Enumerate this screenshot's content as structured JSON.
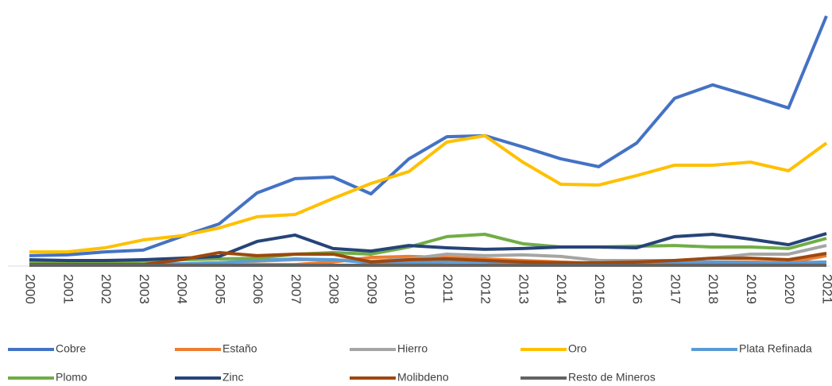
{
  "chart_data": {
    "type": "line",
    "categories": [
      "2000",
      "2001",
      "2002",
      "2003",
      "2004",
      "2005",
      "2006",
      "2007",
      "2008",
      "2009",
      "2010",
      "2011",
      "2012",
      "2013",
      "2014",
      "2015",
      "2016",
      "2017",
      "2018",
      "2019",
      "2020",
      "2021"
    ],
    "ylim": [
      0,
      100
    ],
    "legend": "bottom",
    "series": [
      {
        "name": "Cobre",
        "color": "#4472c4",
        "values": [
          4.1,
          4.4,
          5.6,
          6.3,
          11.6,
          16.6,
          28.8,
          34.4,
          35,
          28.4,
          42.2,
          50.9,
          51.3,
          46.9,
          42.2,
          39.1,
          48.4,
          66,
          71.3,
          66.9,
          62.2,
          98.4
        ]
      },
      {
        "name": "Estaño",
        "color": "#ed7d31",
        "values": [
          0.6,
          0.6,
          0.6,
          0.6,
          0.6,
          0.6,
          0.6,
          0.6,
          1.6,
          3.4,
          3.8,
          3.4,
          2.8,
          2.2,
          1.6,
          1,
          1,
          1.3,
          1.6,
          1.6,
          1.3,
          4.1
        ]
      },
      {
        "name": "Hierro",
        "color": "#a5a5a5",
        "values": [
          0.6,
          0.6,
          0.6,
          0.6,
          0.9,
          1.3,
          1.9,
          2.5,
          2.5,
          1.9,
          2.8,
          4.7,
          4.1,
          4.4,
          3.8,
          2.2,
          2.2,
          2.2,
          3.1,
          4.7,
          4.7,
          8.1
        ]
      },
      {
        "name": "Oro",
        "color": "#ffc000",
        "values": [
          5.6,
          5.6,
          7.2,
          10.3,
          11.9,
          15,
          19.4,
          20.3,
          26.6,
          32.5,
          37.2,
          48.8,
          51.3,
          40.9,
          32.2,
          31.9,
          35.6,
          39.7,
          39.7,
          40.9,
          37.5,
          48.4
        ]
      },
      {
        "name": "Plata Refinada",
        "color": "#5b9bd5",
        "values": [
          0.6,
          0.6,
          0.6,
          0.6,
          0.9,
          1.3,
          2.2,
          2.8,
          2.5,
          1.3,
          1.3,
          1.6,
          1.6,
          1.3,
          1.3,
          0.9,
          0.9,
          1.3,
          1.6,
          1.3,
          1.3,
          1.6
        ]
      },
      {
        "name": "Plomo",
        "color": "#70ad47",
        "values": [
          1.3,
          1.3,
          1.6,
          1.9,
          2.5,
          2.8,
          3.1,
          4.7,
          5.3,
          4.7,
          7.5,
          11.6,
          12.5,
          8.8,
          7.5,
          7.5,
          7.8,
          8.1,
          7.5,
          7.5,
          6.9,
          10.9
        ]
      },
      {
        "name": "Zinc",
        "color": "#264478",
        "values": [
          2.5,
          2.2,
          2.2,
          2.5,
          3.1,
          3.8,
          9.7,
          12.2,
          6.9,
          5.9,
          8.1,
          7.2,
          6.6,
          6.9,
          7.5,
          7.5,
          7.2,
          11.6,
          12.5,
          10.6,
          8.4,
          12.8
        ]
      },
      {
        "name": "Molibdeno",
        "color": "#9e480e",
        "values": [
          0.6,
          0.6,
          0.6,
          0.6,
          2.5,
          5.3,
          4.1,
          4.7,
          4.7,
          1.6,
          2.5,
          2.8,
          2.2,
          1.6,
          1.3,
          1.3,
          1.6,
          2.2,
          3.1,
          3.1,
          2.5,
          5
        ]
      },
      {
        "name": "Resto de Mineros",
        "color": "#636363",
        "values": [
          0.3,
          0.3,
          0.3,
          0.3,
          0.3,
          0.3,
          0.3,
          0.3,
          0.3,
          0.3,
          0.3,
          0.3,
          0.3,
          0.3,
          0.3,
          0.3,
          0.3,
          0.3,
          0.3,
          0.3,
          0.3,
          0.3
        ]
      }
    ]
  }
}
